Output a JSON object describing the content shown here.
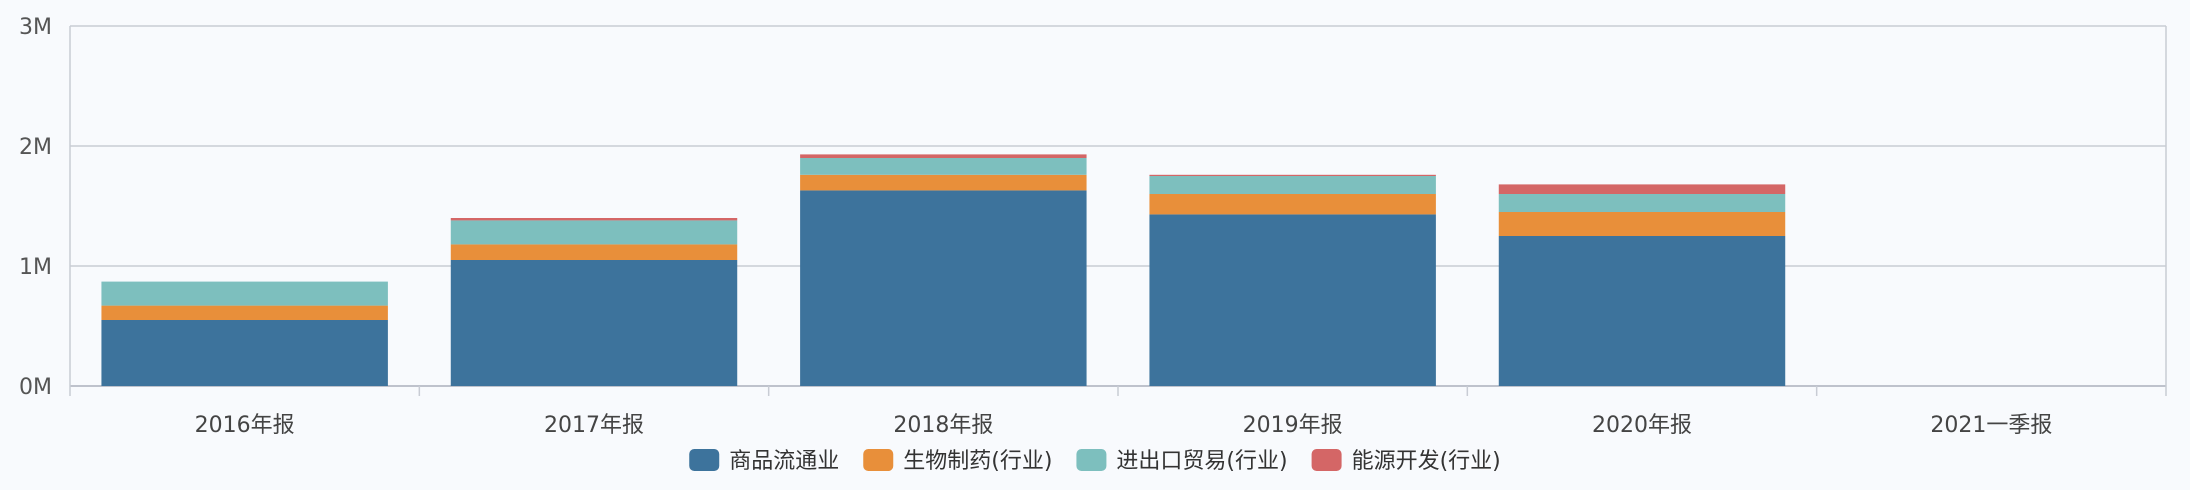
{
  "colors": {
    "grid": "#c8ccd4",
    "axis": "#aab0bb"
  },
  "chart_data": {
    "type": "bar",
    "stacked": true,
    "categories": [
      "2016年报",
      "2017年报",
      "2018年报",
      "2019年报",
      "2020年报",
      "2021一季报"
    ],
    "series": [
      {
        "name": "商品流通业",
        "color": "#3d739c",
        "values": [
          0.55,
          1.05,
          1.63,
          1.43,
          1.25,
          0
        ]
      },
      {
        "name": "生物制药(行业)",
        "color": "#e88f3a",
        "values": [
          0.12,
          0.13,
          0.13,
          0.17,
          0.2,
          0
        ]
      },
      {
        "name": "进出口贸易(行业)",
        "color": "#7dbfbe",
        "values": [
          0.2,
          0.2,
          0.14,
          0.15,
          0.15,
          0
        ]
      },
      {
        "name": "能源开发(行业)",
        "color": "#d46666",
        "values": [
          0.0,
          0.02,
          0.03,
          0.01,
          0.08,
          0
        ]
      }
    ],
    "ylim": [
      0,
      3
    ],
    "yticks": [
      0,
      1,
      2,
      3
    ],
    "ytick_labels": [
      "0M",
      "1M",
      "2M",
      "3M"
    ],
    "grid": true,
    "legend_position": "bottom-center"
  }
}
